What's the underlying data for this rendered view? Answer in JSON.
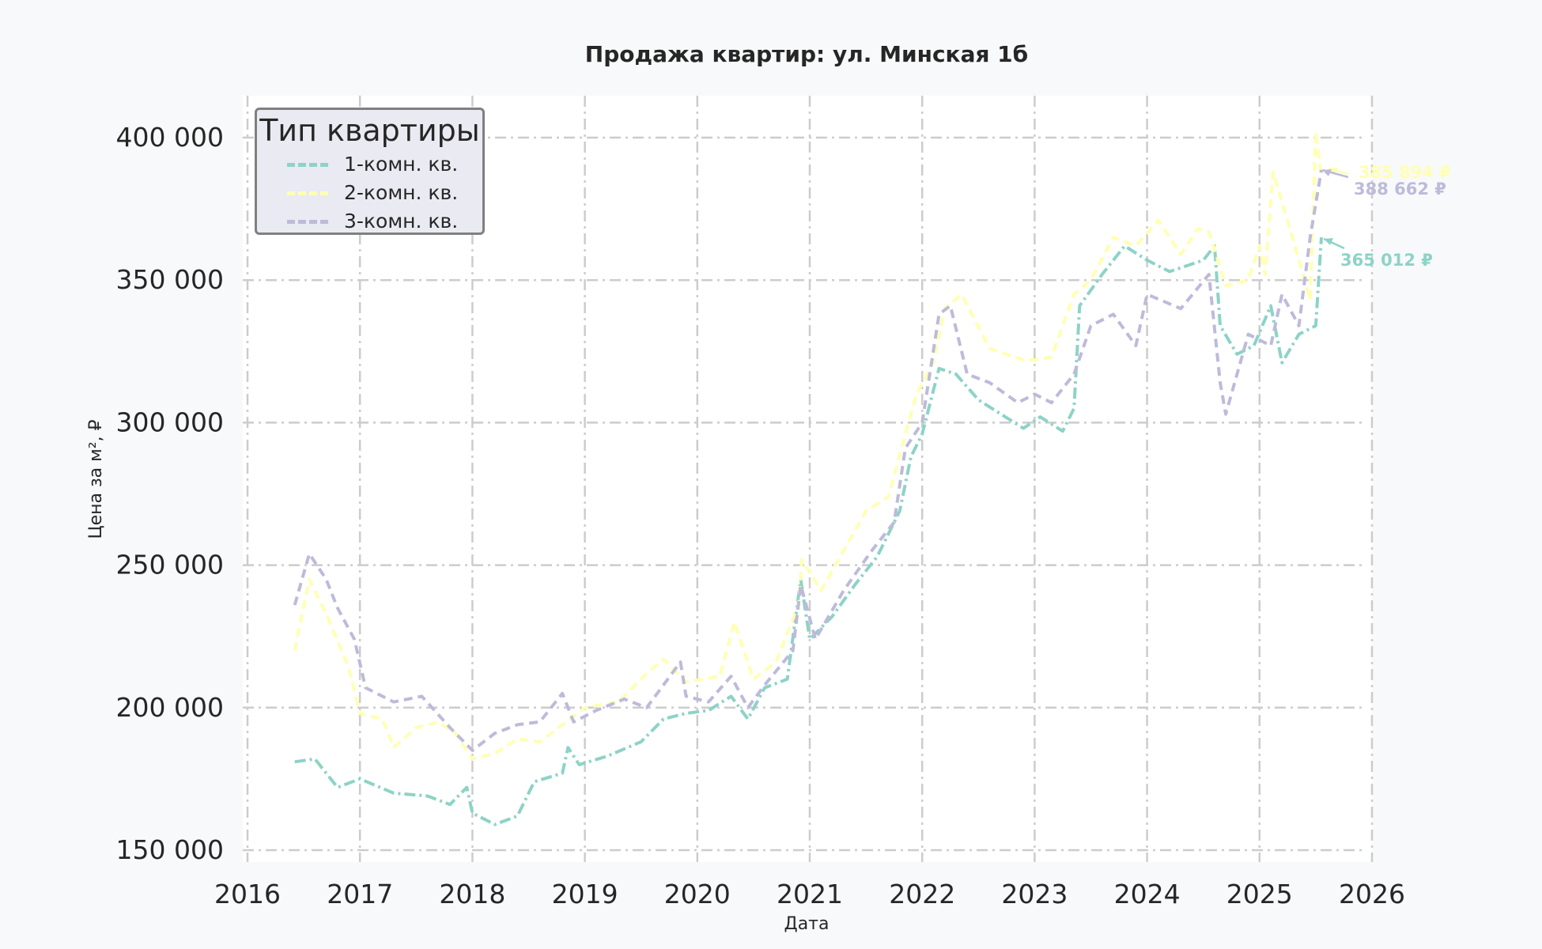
{
  "title": "Продажа квартир: ул. Минская 1б",
  "legend": {
    "title": "Тип квартиры",
    "items": [
      {
        "label": "1-комн. кв.",
        "color": "#8dd3c7",
        "dash": "dashdot"
      },
      {
        "label": "2-комн. кв.",
        "color": "#ffffb3",
        "dash": "dashed"
      },
      {
        "label": "3-комн. кв.",
        "color": "#bebada",
        "dash": "dashed"
      }
    ]
  },
  "axes": {
    "xlabel": "Дата",
    "ylabel": "Цена за м², ₽",
    "xticks": [
      "2016",
      "2017",
      "2018",
      "2019",
      "2020",
      "2021",
      "2022",
      "2023",
      "2024",
      "2025",
      "2026"
    ],
    "yticks": [
      "150 000",
      "200 000",
      "250 000",
      "300 000",
      "350 000",
      "400 000"
    ]
  },
  "annotations": [
    {
      "text": "385 894 ₽",
      "color": "#ffffb3"
    },
    {
      "text": "388 662 ₽",
      "color": "#bebada"
    },
    {
      "text": "365 012 ₽",
      "color": "#8dd3c7"
    }
  ],
  "chart_data": {
    "type": "line",
    "title": "Продажа квартир: ул. Минская 1б",
    "xlabel": "Дата",
    "ylabel": "Цена за м², ₽",
    "xlim": [
      2016,
      2026
    ],
    "ylim": [
      150000,
      400000
    ],
    "grid": true,
    "legend_position": "upper left",
    "legend_title": "Тип квартиры",
    "series": [
      {
        "name": "1-комн. кв.",
        "color": "#8dd3c7",
        "last_value": 365012,
        "x": [
          2016.42,
          2016.6,
          2016.8,
          2017.0,
          2017.3,
          2017.6,
          2017.8,
          2017.95,
          2018.0,
          2018.2,
          2018.4,
          2018.55,
          2018.8,
          2018.85,
          2018.95,
          2019.2,
          2019.5,
          2019.7,
          2019.9,
          2020.1,
          2020.3,
          2020.45,
          2020.6,
          2020.8,
          2020.92,
          2021.0,
          2021.2,
          2021.4,
          2021.6,
          2021.8,
          2021.9,
          2022.0,
          2022.15,
          2022.3,
          2022.5,
          2022.7,
          2022.9,
          2023.05,
          2023.25,
          2023.35,
          2023.4,
          2023.6,
          2023.8,
          2024.0,
          2024.2,
          2024.5,
          2024.6,
          2024.65,
          2024.8,
          2024.95,
          2025.1,
          2025.2,
          2025.35,
          2025.5,
          2025.55
        ],
        "values": [
          181000,
          182000,
          172000,
          175000,
          170000,
          169000,
          166000,
          172000,
          163000,
          159000,
          162000,
          174000,
          177000,
          186000,
          180000,
          183000,
          188000,
          196000,
          198000,
          199000,
          204000,
          196000,
          207000,
          210000,
          245000,
          224000,
          232000,
          243000,
          253000,
          269000,
          288000,
          296000,
          319000,
          317000,
          308000,
          303000,
          298000,
          302000,
          297000,
          305000,
          341000,
          352000,
          362000,
          357000,
          353000,
          357000,
          362000,
          334000,
          324000,
          327000,
          341000,
          321000,
          331000,
          334000,
          365012
        ]
      },
      {
        "name": "2-комн. кв.",
        "color": "#ffffb3",
        "last_value": 385894,
        "x": [
          2016.42,
          2016.55,
          2016.7,
          2016.9,
          2017.0,
          2017.2,
          2017.3,
          2017.5,
          2017.7,
          2017.85,
          2018.0,
          2018.2,
          2018.4,
          2018.6,
          2018.8,
          2019.0,
          2019.3,
          2019.55,
          2019.7,
          2019.9,
          2020.2,
          2020.33,
          2020.5,
          2020.7,
          2020.9,
          2020.93,
          2021.1,
          2021.3,
          2021.5,
          2021.7,
          2021.85,
          2021.95,
          2022.1,
          2022.2,
          2022.35,
          2022.6,
          2022.9,
          2023.0,
          2023.15,
          2023.35,
          2023.5,
          2023.7,
          2023.9,
          2024.1,
          2024.3,
          2024.45,
          2024.55,
          2024.7,
          2024.9,
          2025.0,
          2025.05,
          2025.12,
          2025.3,
          2025.45,
          2025.5,
          2025.55
        ],
        "values": [
          220000,
          245000,
          233000,
          214000,
          198000,
          196000,
          186000,
          193000,
          195000,
          191000,
          182000,
          184000,
          189000,
          188000,
          194000,
          200000,
          202000,
          212000,
          217000,
          209000,
          211000,
          230000,
          210000,
          216000,
          236000,
          252000,
          241000,
          255000,
          269000,
          274000,
          296000,
          310000,
          321000,
          340000,
          345000,
          326000,
          322000,
          322000,
          323000,
          345000,
          350000,
          365000,
          362000,
          371000,
          359000,
          368000,
          367000,
          348000,
          350000,
          362000,
          352000,
          388000,
          364000,
          343000,
          402000,
          385894
        ]
      },
      {
        "name": "3-комн. кв.",
        "color": "#bebada",
        "last_value": 388662,
        "x": [
          2016.42,
          2016.55,
          2016.7,
          2016.8,
          2016.95,
          2017.05,
          2017.3,
          2017.55,
          2017.8,
          2018.0,
          2018.2,
          2018.4,
          2018.6,
          2018.8,
          2018.9,
          2019.1,
          2019.35,
          2019.55,
          2019.85,
          2019.9,
          2020.1,
          2020.3,
          2020.45,
          2020.6,
          2020.85,
          2020.92,
          2021.05,
          2021.3,
          2021.55,
          2021.75,
          2021.85,
          2022.0,
          2022.15,
          2022.25,
          2022.4,
          2022.6,
          2022.85,
          2023.0,
          2023.15,
          2023.35,
          2023.5,
          2023.7,
          2023.9,
          2024.0,
          2024.3,
          2024.55,
          2024.65,
          2024.7,
          2024.9,
          2025.1,
          2025.2,
          2025.35,
          2025.45,
          2025.55
        ],
        "values": [
          236000,
          254000,
          245000,
          235000,
          224000,
          207000,
          202000,
          204000,
          193000,
          185000,
          191000,
          194000,
          195000,
          205000,
          195000,
          199000,
          203000,
          200000,
          216000,
          204000,
          202000,
          211000,
          200000,
          208000,
          220000,
          243000,
          224000,
          241000,
          255000,
          265000,
          291000,
          300000,
          338000,
          341000,
          317000,
          314000,
          307000,
          310000,
          307000,
          317000,
          334000,
          338000,
          327000,
          345000,
          340000,
          352000,
          314000,
          303000,
          331000,
          327000,
          345000,
          334000,
          365000,
          388662
        ]
      }
    ]
  }
}
